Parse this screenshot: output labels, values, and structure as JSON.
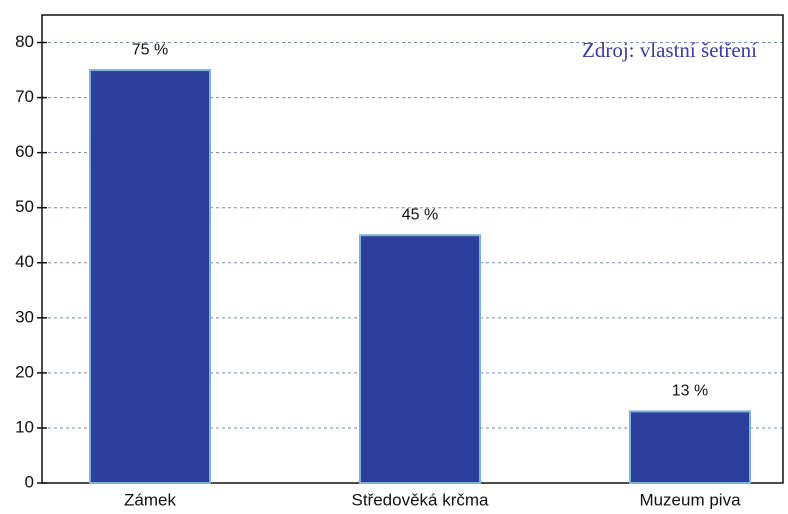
{
  "chart_data": {
    "type": "bar",
    "annotation": "Zdroj: vlastní šetření",
    "categories": [
      "Zámek",
      "Středověká krčma",
      "Muzeum piva"
    ],
    "values": [
      75,
      45,
      13
    ],
    "value_labels": [
      "75 %",
      "45 %",
      "13 %"
    ],
    "color": "#2d3f9c",
    "ylim": [
      0,
      85
    ],
    "yticks": [
      0,
      10,
      20,
      30,
      40,
      50,
      60,
      70,
      80
    ],
    "grid": true
  }
}
